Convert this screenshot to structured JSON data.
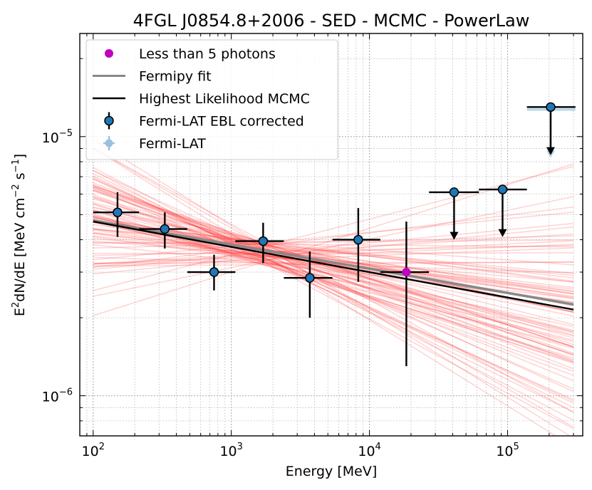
{
  "chart_data": {
    "type": "scatter",
    "title": "4FGL J0854.8+2006 - SED - MCMC - PowerLaw",
    "xlabel": "Energy [MeV]",
    "ylabel_parts": [
      "E",
      "2",
      "dN/dE [MeV cm",
      "−2",
      " s",
      "−1",
      "]"
    ],
    "xscale": "log",
    "yscale": "log",
    "xlim": [
      80,
      350000
    ],
    "ylim": [
      7e-07,
      2.5e-05
    ],
    "x_ticks": [
      {
        "value": 100,
        "base": "10",
        "exp": "2"
      },
      {
        "value": 1000,
        "base": "10",
        "exp": "3"
      },
      {
        "value": 10000,
        "base": "10",
        "exp": "4"
      },
      {
        "value": 100000,
        "base": "10",
        "exp": "5"
      }
    ],
    "y_ticks": [
      {
        "value": 1e-06,
        "base": "10",
        "exp": "−6"
      },
      {
        "value": 1e-05,
        "base": "10",
        "exp": "−5"
      }
    ],
    "grid": true,
    "legend_position": "top-left",
    "legend": [
      {
        "label": "Less than 5 photons",
        "kind": "marker",
        "color": "#c000c0"
      },
      {
        "label": "Fermipy fit",
        "kind": "line",
        "color": "#888888"
      },
      {
        "label": "Highest Likelihood MCMC",
        "kind": "line",
        "color": "#000000"
      },
      {
        "label": "Fermi-LAT EBL corrected",
        "kind": "errorbar",
        "color": "#1f77b4"
      },
      {
        "label": "Fermi-LAT",
        "kind": "errorbar-light",
        "color": "#1f77b4"
      }
    ],
    "model_lines": {
      "highest_likelihood": {
        "x": [
          100,
          300000
        ],
        "y": [
          4.7e-06,
          2.15e-06
        ],
        "color": "#000000"
      },
      "fermipy_fit": {
        "x": [
          100,
          300000
        ],
        "y": [
          4.75e-06,
          2.25e-06
        ],
        "color": "#888888"
      },
      "mcmc_samples": {
        "pivot_energy": 1700,
        "pivot_flux": 3.55e-06,
        "count": 90,
        "index_range": [
          1.75,
          2.45
        ],
        "color": "#ff3030"
      }
    },
    "series": [
      {
        "name": "Fermi-LAT EBL corrected",
        "color": "#1f77b4",
        "points": [
          {
            "x": 150,
            "y": 5.1e-06,
            "xerr": [
              100,
              215
            ],
            "yerr": [
              4.1e-06,
              6.1e-06
            ],
            "upper_limit": false,
            "few_photons": false
          },
          {
            "x": 330,
            "y": 4.4e-06,
            "xerr": [
              215,
              480
            ],
            "yerr": [
              3.7e-06,
              5.1e-06
            ],
            "upper_limit": false,
            "few_photons": false
          },
          {
            "x": 750,
            "y": 3e-06,
            "xerr": [
              480,
              1070
            ],
            "yerr": [
              2.55e-06,
              3.5e-06
            ],
            "upper_limit": false,
            "few_photons": false
          },
          {
            "x": 1700,
            "y": 3.95e-06,
            "xerr": [
              1070,
              2400
            ],
            "yerr": [
              3.25e-06,
              4.65e-06
            ],
            "upper_limit": false,
            "few_photons": false
          },
          {
            "x": 3700,
            "y": 2.85e-06,
            "xerr": [
              2400,
              5400
            ],
            "yerr": [
              2e-06,
              3.6e-06
            ],
            "upper_limit": false,
            "few_photons": false
          },
          {
            "x": 8300,
            "y": 4e-06,
            "xerr": [
              5400,
              12000
            ],
            "yerr": [
              2.75e-06,
              5.3e-06
            ],
            "upper_limit": false,
            "few_photons": false
          },
          {
            "x": 18500,
            "y": 3e-06,
            "xerr": [
              12000,
              27000
            ],
            "yerr": [
              1.3e-06,
              4.7e-06
            ],
            "upper_limit": false,
            "few_photons": true
          },
          {
            "x": 41000,
            "y": 6.1e-06,
            "xerr": [
              27000,
              62000
            ],
            "upper_limit": true,
            "ul_to": 4.05e-06,
            "few_photons": false
          },
          {
            "x": 92000,
            "y": 6.25e-06,
            "xerr": [
              62000,
              138000
            ],
            "upper_limit": true,
            "ul_to": 4.15e-06,
            "few_photons": false
          },
          {
            "x": 205000,
            "y": 1.3e-05,
            "xerr": [
              138000,
              310000
            ],
            "upper_limit": true,
            "ul_to": 8.6e-06,
            "few_photons": false
          }
        ]
      },
      {
        "name": "Fermi-LAT",
        "color": "#1f77b4",
        "points": [
          {
            "x": 205000,
            "y": 1.27e-05,
            "xerr": [
              138000,
              310000
            ],
            "upper_limit": true,
            "ul_to": 8.4e-06
          }
        ]
      }
    ]
  }
}
